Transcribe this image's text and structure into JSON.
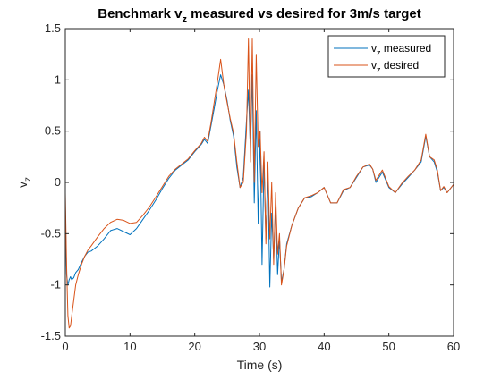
{
  "chart_data": {
    "type": "line",
    "title_parts": {
      "pre": "Benchmark v",
      "sub": "z",
      "post": " measured vs desired for 3m/s target"
    },
    "xlabel": "Time (s)",
    "ylabel_parts": {
      "main": "v",
      "sub": "z"
    },
    "xlim": [
      0,
      60
    ],
    "ylim": [
      -1.5,
      1.5
    ],
    "xticks": [
      0,
      10,
      20,
      30,
      40,
      50,
      60
    ],
    "yticks": [
      -1.5,
      -1,
      -0.5,
      0,
      0.5,
      1,
      1.5
    ],
    "xtick_labels": [
      "0",
      "10",
      "20",
      "30",
      "40",
      "50",
      "60"
    ],
    "ytick_labels": [
      "-1.5",
      "-1",
      "-0.5",
      "0",
      "0.5",
      "1",
      "1.5"
    ],
    "grid": false,
    "legend_position": "top-right",
    "series": [
      {
        "name_parts": {
          "main": "v",
          "sub": "z",
          "rest": " measured"
        },
        "color": "#0072BD",
        "x": [
          0,
          0.2,
          0.4,
          0.6,
          0.8,
          1.0,
          1.3,
          1.6,
          2.0,
          2.5,
          3.0,
          3.5,
          4.0,
          5.0,
          6.0,
          7.0,
          8.0,
          9.0,
          10.0,
          11.0,
          12.0,
          13.0,
          14.0,
          15.0,
          16.0,
          17.0,
          18.0,
          19.0,
          20.0,
          21.0,
          21.5,
          22.0,
          22.5,
          23.0,
          23.5,
          24.0,
          24.5,
          25.0,
          25.5,
          26.0,
          26.5,
          27.0,
          27.5,
          28.0,
          28.3,
          28.6,
          28.9,
          29.2,
          29.5,
          29.8,
          30.1,
          30.4,
          30.7,
          31.0,
          31.3,
          31.6,
          31.9,
          32.2,
          32.5,
          32.8,
          33.1,
          33.4,
          33.8,
          34.2,
          35.0,
          36.0,
          37.0,
          38.0,
          39.0,
          40.0,
          41.0,
          42.0,
          43.0,
          44.0,
          45.0,
          46.0,
          47.0,
          47.5,
          48.0,
          49.0,
          50.0,
          51.0,
          52.0,
          53.0,
          54.0,
          55.0,
          55.7,
          56.3,
          57.0,
          57.5,
          58.0,
          58.5,
          59.0,
          60.0
        ],
        "values": [
          -0.25,
          -0.9,
          -1.0,
          -0.95,
          -0.92,
          -0.95,
          -0.93,
          -0.88,
          -0.85,
          -0.78,
          -0.72,
          -0.68,
          -0.67,
          -0.62,
          -0.55,
          -0.47,
          -0.45,
          -0.48,
          -0.51,
          -0.45,
          -0.36,
          -0.27,
          -0.17,
          -0.06,
          0.04,
          0.12,
          0.17,
          0.22,
          0.3,
          0.37,
          0.42,
          0.38,
          0.55,
          0.72,
          0.9,
          1.05,
          0.95,
          0.8,
          0.6,
          0.45,
          0.15,
          -0.05,
          0.05,
          0.6,
          0.9,
          0.3,
          1.05,
          -0.2,
          0.7,
          -0.4,
          0.5,
          -0.8,
          0.2,
          -0.55,
          0.1,
          -1.02,
          -0.3,
          -0.75,
          -0.2,
          -0.9,
          -0.55,
          -0.97,
          -0.85,
          -0.6,
          -0.42,
          -0.25,
          -0.15,
          -0.14,
          -0.1,
          -0.05,
          -0.2,
          -0.2,
          -0.08,
          -0.05,
          0.05,
          0.15,
          0.17,
          0.13,
          0.0,
          0.1,
          -0.05,
          -0.1,
          -0.02,
          0.05,
          0.12,
          0.2,
          0.45,
          0.25,
          0.2,
          0.1,
          -0.08,
          -0.05,
          -0.1,
          -0.02
        ]
      },
      {
        "name_parts": {
          "main": "v",
          "sub": "z",
          "rest": " desired"
        },
        "color": "#D95319",
        "x": [
          0,
          0.2,
          0.4,
          0.6,
          0.8,
          1.0,
          1.3,
          1.6,
          2.0,
          2.5,
          3.0,
          3.5,
          4.0,
          5.0,
          6.0,
          7.0,
          8.0,
          9.0,
          10.0,
          11.0,
          12.0,
          13.0,
          14.0,
          15.0,
          16.0,
          17.0,
          18.0,
          19.0,
          20.0,
          21.0,
          21.5,
          22.0,
          22.5,
          23.0,
          23.5,
          24.0,
          24.5,
          25.0,
          25.5,
          26.0,
          26.5,
          27.0,
          27.5,
          28.0,
          28.3,
          28.6,
          28.9,
          29.2,
          29.5,
          29.8,
          30.1,
          30.4,
          30.7,
          31.0,
          31.3,
          31.6,
          31.9,
          32.2,
          32.5,
          32.8,
          33.1,
          33.4,
          33.8,
          34.2,
          35.0,
          36.0,
          37.0,
          38.0,
          39.0,
          40.0,
          41.0,
          42.0,
          43.0,
          44.0,
          45.0,
          46.0,
          47.0,
          47.5,
          48.0,
          49.0,
          50.0,
          51.0,
          52.0,
          53.0,
          54.0,
          55.0,
          55.7,
          56.3,
          57.0,
          57.5,
          58.0,
          58.5,
          59.0,
          60.0
        ],
        "values": [
          -0.1,
          -0.8,
          -1.3,
          -1.42,
          -1.4,
          -1.3,
          -1.15,
          -1.0,
          -0.9,
          -0.8,
          -0.72,
          -0.66,
          -0.62,
          -0.53,
          -0.45,
          -0.39,
          -0.36,
          -0.37,
          -0.4,
          -0.39,
          -0.32,
          -0.24,
          -0.14,
          -0.04,
          0.06,
          0.13,
          0.18,
          0.23,
          0.31,
          0.38,
          0.44,
          0.4,
          0.58,
          0.78,
          0.98,
          1.2,
          0.95,
          0.78,
          0.62,
          0.48,
          0.2,
          -0.05,
          0.0,
          0.5,
          1.4,
          0.2,
          1.4,
          0.0,
          1.25,
          0.35,
          0.5,
          -0.1,
          0.3,
          -0.6,
          0.2,
          -0.55,
          0.0,
          -0.8,
          -0.1,
          -0.7,
          -0.5,
          -1.0,
          -0.85,
          -0.62,
          -0.42,
          -0.25,
          -0.15,
          -0.13,
          -0.1,
          -0.05,
          -0.2,
          -0.2,
          -0.07,
          -0.05,
          0.06,
          0.15,
          0.18,
          0.13,
          0.02,
          0.12,
          -0.04,
          -0.1,
          -0.01,
          0.06,
          0.12,
          0.22,
          0.47,
          0.25,
          0.22,
          0.12,
          -0.08,
          -0.04,
          -0.1,
          -0.02
        ]
      }
    ]
  }
}
